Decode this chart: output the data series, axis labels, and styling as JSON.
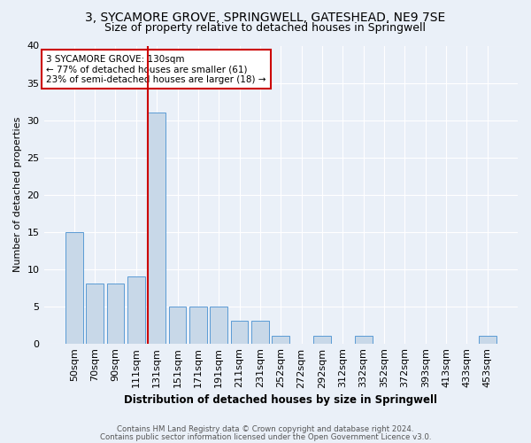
{
  "title1": "3, SYCAMORE GROVE, SPRINGWELL, GATESHEAD, NE9 7SE",
  "title2": "Size of property relative to detached houses in Springwell",
  "xlabel": "Distribution of detached houses by size in Springwell",
  "ylabel": "Number of detached properties",
  "categories": [
    "50sqm",
    "70sqm",
    "90sqm",
    "111sqm",
    "131sqm",
    "151sqm",
    "171sqm",
    "191sqm",
    "211sqm",
    "231sqm",
    "252sqm",
    "272sqm",
    "292sqm",
    "312sqm",
    "332sqm",
    "352sqm",
    "372sqm",
    "393sqm",
    "413sqm",
    "433sqm",
    "453sqm"
  ],
  "values": [
    15,
    8,
    8,
    9,
    31,
    5,
    5,
    5,
    3,
    3,
    1,
    0,
    1,
    0,
    1,
    0,
    0,
    0,
    0,
    0,
    1
  ],
  "bar_color": "#c8d8e8",
  "bar_edge_color": "#5b9bd5",
  "highlight_line_index": 4,
  "highlight_line_color": "#cc0000",
  "annotation_line1": "3 SYCAMORE GROVE: 130sqm",
  "annotation_line2": "← 77% of detached houses are smaller (61)",
  "annotation_line3": "23% of semi-detached houses are larger (18) →",
  "annotation_box_color": "#ffffff",
  "annotation_box_edge": "#cc0000",
  "footer1": "Contains HM Land Registry data © Crown copyright and database right 2024.",
  "footer2": "Contains public sector information licensed under the Open Government Licence v3.0.",
  "ylim": [
    0,
    40
  ],
  "yticks": [
    0,
    5,
    10,
    15,
    20,
    25,
    30,
    35,
    40
  ],
  "bg_color": "#eaf0f8",
  "grid_color": "#ffffff",
  "title1_fontsize": 10,
  "title2_fontsize": 9,
  "bar_width": 0.85
}
